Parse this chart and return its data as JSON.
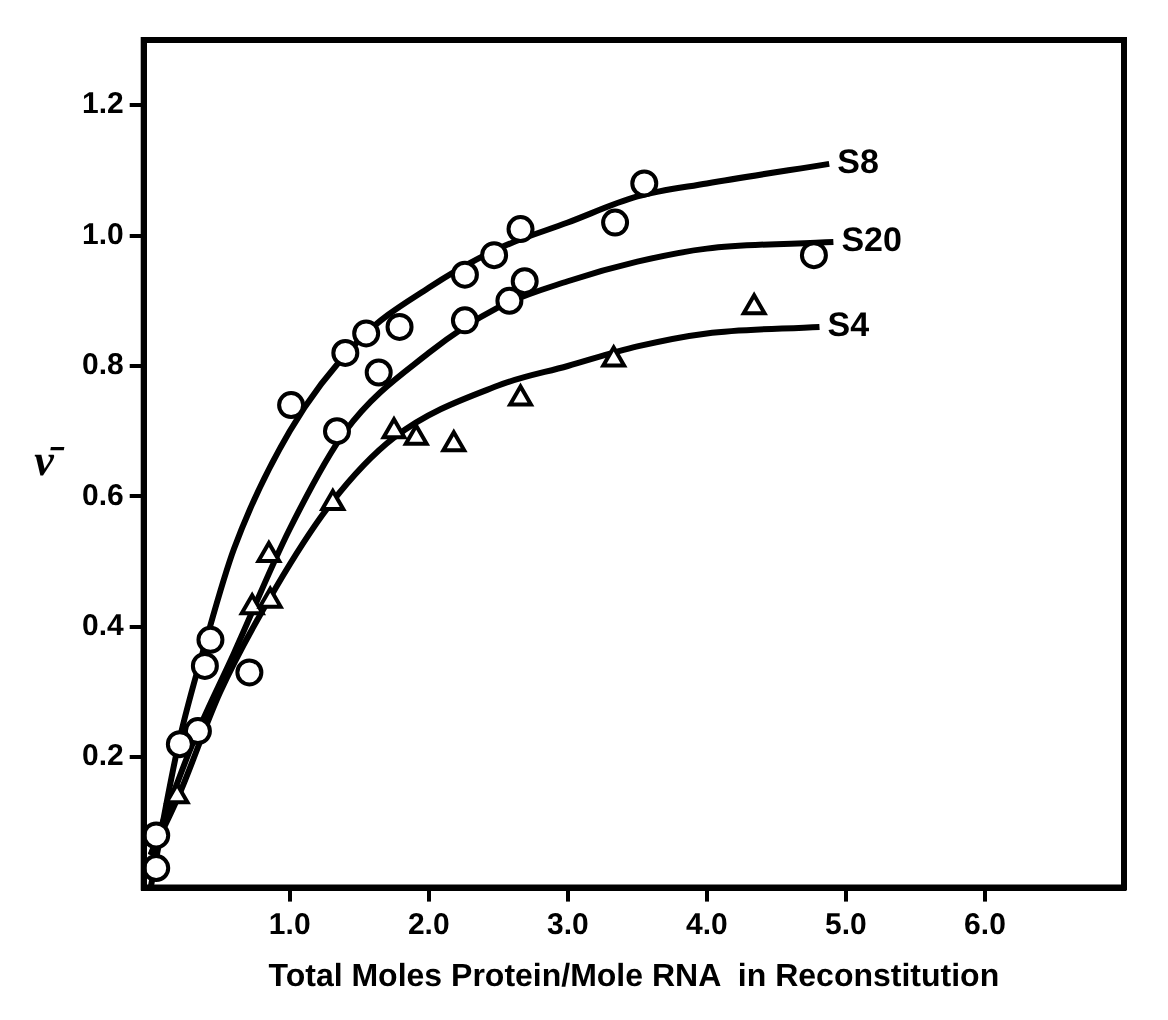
{
  "chart_data": {
    "type": "scatter",
    "xlabel": "Total Moles Protein/Mole RNA  in Reconstitution",
    "ylabel": "ν̄",
    "xlim": [
      -0.05,
      7.0
    ],
    "ylim": [
      0,
      1.3
    ],
    "xticks": [
      {
        "value": 1,
        "label": "1.0"
      },
      {
        "value": 2,
        "label": "2.0"
      },
      {
        "value": 3,
        "label": "3.0"
      },
      {
        "value": 4,
        "label": "4.0"
      },
      {
        "value": 5,
        "label": "5.0"
      },
      {
        "value": 6,
        "label": "6.0"
      }
    ],
    "yticks": [
      0.2,
      0.4,
      0.6,
      0.8,
      {
        "value": 1,
        "label": "1.0"
      },
      1.2
    ],
    "grid": false,
    "legend": false,
    "series": [
      {
        "type": "scatter",
        "marker": "circle",
        "color": "#000000",
        "x": [
          0.21,
          0.39,
          0.43,
          1.01,
          1.4,
          1.55,
          2.26,
          2.47,
          2.66,
          3.34,
          3.55
        ],
        "values": [
          0.22,
          0.34,
          0.38,
          0.74,
          0.82,
          0.85,
          0.94,
          0.97,
          1.01,
          1.02,
          1.08
        ]
      },
      {
        "type": "scatter",
        "marker": "circle",
        "color": "#000000",
        "x": [
          0.04,
          0.04,
          0.34,
          0.71,
          1.34,
          1.64,
          1.79,
          2.26,
          2.58,
          2.69,
          4.77
        ],
        "values": [
          0.03,
          0.08,
          0.24,
          0.33,
          0.7,
          0.79,
          0.86,
          0.87,
          0.9,
          0.93,
          0.97
        ]
      },
      {
        "type": "scatter",
        "marker": "triangle",
        "color": "#000000",
        "x": [
          0.19,
          0.73,
          0.85,
          0.86,
          1.31,
          1.75,
          1.91,
          2.18,
          2.66,
          3.33,
          4.34
        ],
        "values": [
          0.14,
          0.43,
          0.51,
          0.44,
          0.59,
          0.7,
          0.69,
          0.68,
          0.75,
          0.81,
          0.89
        ]
      },
      {
        "type": "line",
        "name": "S8",
        "marker": "none",
        "color": "#000000",
        "x": [
          0,
          0.2,
          0.4,
          0.6,
          1.0,
          1.5,
          2.0,
          2.5,
          3.0,
          3.5,
          4.0,
          4.88
        ],
        "values": [
          0,
          0.22,
          0.38,
          0.52,
          0.7,
          0.84,
          0.92,
          0.98,
          1.02,
          1.06,
          1.08,
          1.11
        ]
      },
      {
        "type": "line",
        "name": "S20",
        "marker": "none",
        "color": "#000000",
        "x": [
          0,
          0.3,
          0.6,
          1.0,
          1.4,
          2.0,
          2.5,
          3.0,
          3.5,
          4.0,
          4.91
        ],
        "values": [
          0.05,
          0.22,
          0.36,
          0.55,
          0.7,
          0.82,
          0.89,
          0.93,
          0.96,
          0.98,
          0.99
        ]
      },
      {
        "type": "line",
        "name": "S4",
        "marker": "none",
        "color": "#000000",
        "x": [
          0,
          0.2,
          0.5,
          0.9,
          1.3,
          1.75,
          2.5,
          3.0,
          3.5,
          4.0,
          4.81
        ],
        "values": [
          0.05,
          0.14,
          0.3,
          0.46,
          0.59,
          0.69,
          0.77,
          0.8,
          0.83,
          0.85,
          0.86
        ]
      }
    ]
  }
}
